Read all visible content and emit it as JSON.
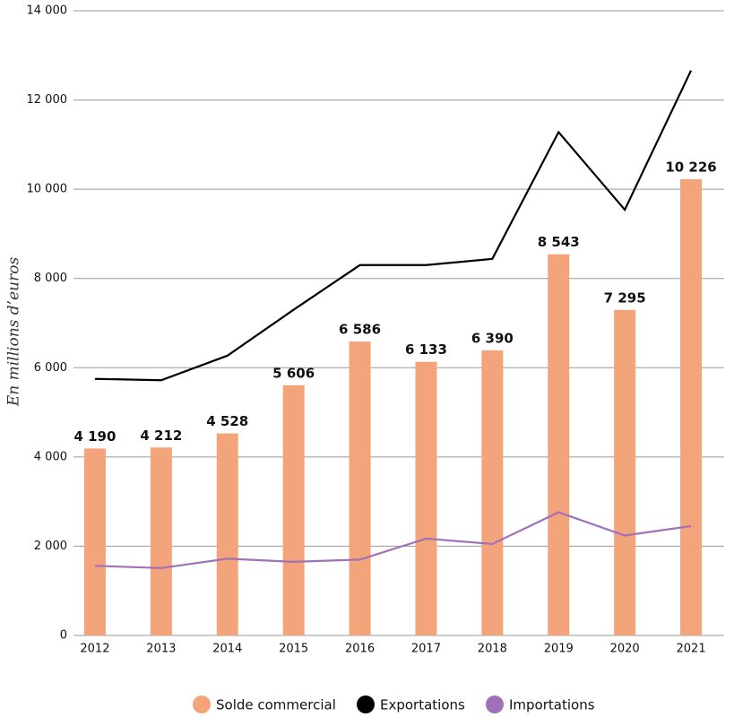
{
  "chart_data": {
    "type": "bar",
    "y_label": "En millions d’euros",
    "categories": [
      "2012",
      "2013",
      "2014",
      "2015",
      "2016",
      "2017",
      "2018",
      "2019",
      "2020",
      "2021"
    ],
    "series": [
      {
        "name": "Solde commercial",
        "type": "bar",
        "color": "#f3a47b",
        "values": [
          4190,
          4212,
          4528,
          5606,
          6586,
          6133,
          6390,
          8543,
          7295,
          10226
        ],
        "value_labels": [
          "4 190",
          "4 212",
          "4 528",
          "5 606",
          "6 586",
          "6 133",
          "6 390",
          "8 543",
          "7 295",
          "10 226"
        ]
      },
      {
        "name": "Exportations",
        "type": "line",
        "color": "#000000",
        "values": [
          5750,
          5720,
          6270,
          7300,
          8300,
          8300,
          8440,
          11280,
          9540,
          12660
        ]
      },
      {
        "name": "Importations",
        "type": "line",
        "color": "#a070b8",
        "values": [
          1560,
          1510,
          1720,
          1650,
          1700,
          2170,
          2050,
          2760,
          2240,
          2450
        ]
      }
    ],
    "ylim": [
      0,
      14000
    ],
    "yticks": [
      0,
      {
        "value": 2000,
        "label": "2 000"
      },
      {
        "value": 4000,
        "label": "4 000"
      },
      {
        "value": 6000,
        "label": "6 000"
      },
      {
        "value": 8000,
        "label": "8 000"
      },
      {
        "value": 10000,
        "label": "10 000"
      },
      {
        "value": 12000,
        "label": "12 000"
      },
      {
        "value": 14000,
        "label": "14 000"
      }
    ],
    "grid": true
  }
}
